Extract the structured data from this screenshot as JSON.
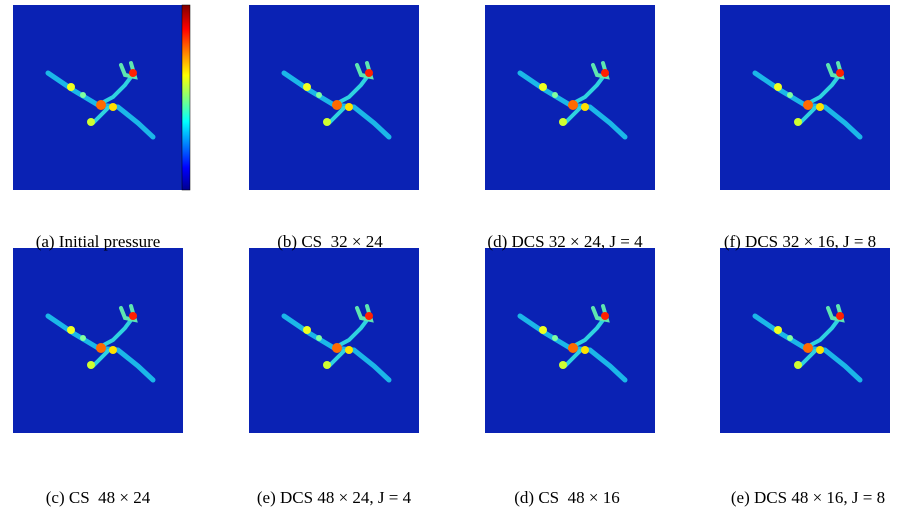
{
  "figure": {
    "panels": [
      {
        "caption": "(a) Initial pressure"
      },
      {
        "caption": "(b) CS  32 × 24"
      },
      {
        "caption": "(d) DCS 32 × 24, J = 4"
      },
      {
        "caption": "(f) DCS 32 × 16, J = 8"
      },
      {
        "caption": "(c) CS  48 × 24"
      },
      {
        "caption": "(e) DCS 48 × 24, J = 4"
      },
      {
        "caption": "(d) CS  48 × 16"
      },
      {
        "caption": "(e) DCS 48 × 16, J = 8"
      }
    ]
  }
}
